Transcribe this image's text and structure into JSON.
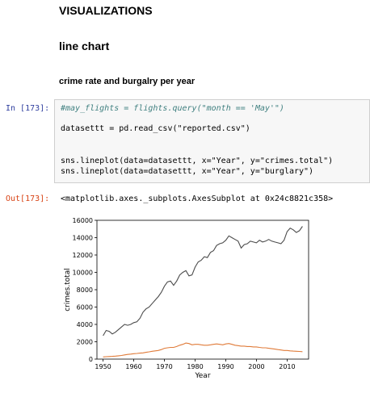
{
  "headings": {
    "h1": "VISUALIZATIONS",
    "h2": "line chart",
    "h3": "crime rate and burgalry per year"
  },
  "input_cell": {
    "prompt": "In [173]:",
    "lines": [
      "#may_flights = flights.query(\"month == 'May'\")",
      "datasettt = pd.read_csv(\"reported.csv\")",
      "sns.lineplot(data=datasettt, x=\"Year\", y=\"crimes.total\")",
      "sns.lineplot(data=datasettt, x=\"Year\", y=\"burglary\")"
    ]
  },
  "output_cell": {
    "prompt": "Out[173]:",
    "text": "<matplotlib.axes._subplots.AxesSubplot at 0x24c8821c358>"
  },
  "chart_data": {
    "type": "line",
    "xlabel": "Year",
    "ylabel": "crimes.total",
    "xlim": [
      1948,
      2017
    ],
    "ylim": [
      0,
      16000
    ],
    "xticks": [
      1950,
      1960,
      1970,
      1980,
      1990,
      2000,
      2010
    ],
    "yticks": [
      0,
      2000,
      4000,
      6000,
      8000,
      10000,
      12000,
      14000,
      16000
    ],
    "x": [
      1950,
      1951,
      1952,
      1953,
      1954,
      1955,
      1956,
      1957,
      1958,
      1959,
      1960,
      1961,
      1962,
      1963,
      1964,
      1965,
      1966,
      1967,
      1968,
      1969,
      1970,
      1971,
      1972,
      1973,
      1974,
      1975,
      1976,
      1977,
      1978,
      1979,
      1980,
      1981,
      1982,
      1983,
      1984,
      1985,
      1986,
      1987,
      1988,
      1989,
      1990,
      1991,
      1992,
      1993,
      1994,
      1995,
      1996,
      1997,
      1998,
      1999,
      2000,
      2001,
      2002,
      2003,
      2004,
      2005,
      2006,
      2007,
      2008,
      2009,
      2010,
      2011,
      2012,
      2013,
      2014,
      2015
    ],
    "series": [
      {
        "color": "#4c4c4c",
        "values": [
          2700,
          3300,
          3200,
          2900,
          3100,
          3400,
          3700,
          4000,
          3900,
          4000,
          4200,
          4300,
          4700,
          5400,
          5800,
          6000,
          6400,
          6800,
          7200,
          7700,
          8400,
          8900,
          9000,
          8500,
          9000,
          9700,
          10000,
          10200,
          9600,
          9700,
          10600,
          11200,
          11400,
          11800,
          11700,
          12300,
          12500,
          13100,
          13300,
          13400,
          13700,
          14200,
          14000,
          13800,
          13600,
          12800,
          13200,
          13300,
          13600,
          13500,
          13400,
          13700,
          13500,
          13600,
          13800,
          13600,
          13500,
          13400,
          13300,
          13700,
          14700,
          15100,
          14900,
          14600,
          14800,
          15300
        ]
      },
      {
        "color": "#e07b39",
        "values": [
          250,
          280,
          300,
          320,
          340,
          380,
          420,
          480,
          540,
          580,
          620,
          650,
          690,
          720,
          780,
          840,
          900,
          950,
          1000,
          1100,
          1250,
          1300,
          1350,
          1350,
          1450,
          1600,
          1700,
          1850,
          1800,
          1650,
          1700,
          1700,
          1650,
          1600,
          1600,
          1650,
          1700,
          1750,
          1700,
          1650,
          1750,
          1800,
          1700,
          1600,
          1550,
          1500,
          1500,
          1450,
          1450,
          1400,
          1400,
          1350,
          1300,
          1300,
          1250,
          1200,
          1150,
          1100,
          1050,
          1000,
          1000,
          950,
          920,
          900,
          880,
          860
        ]
      }
    ]
  }
}
